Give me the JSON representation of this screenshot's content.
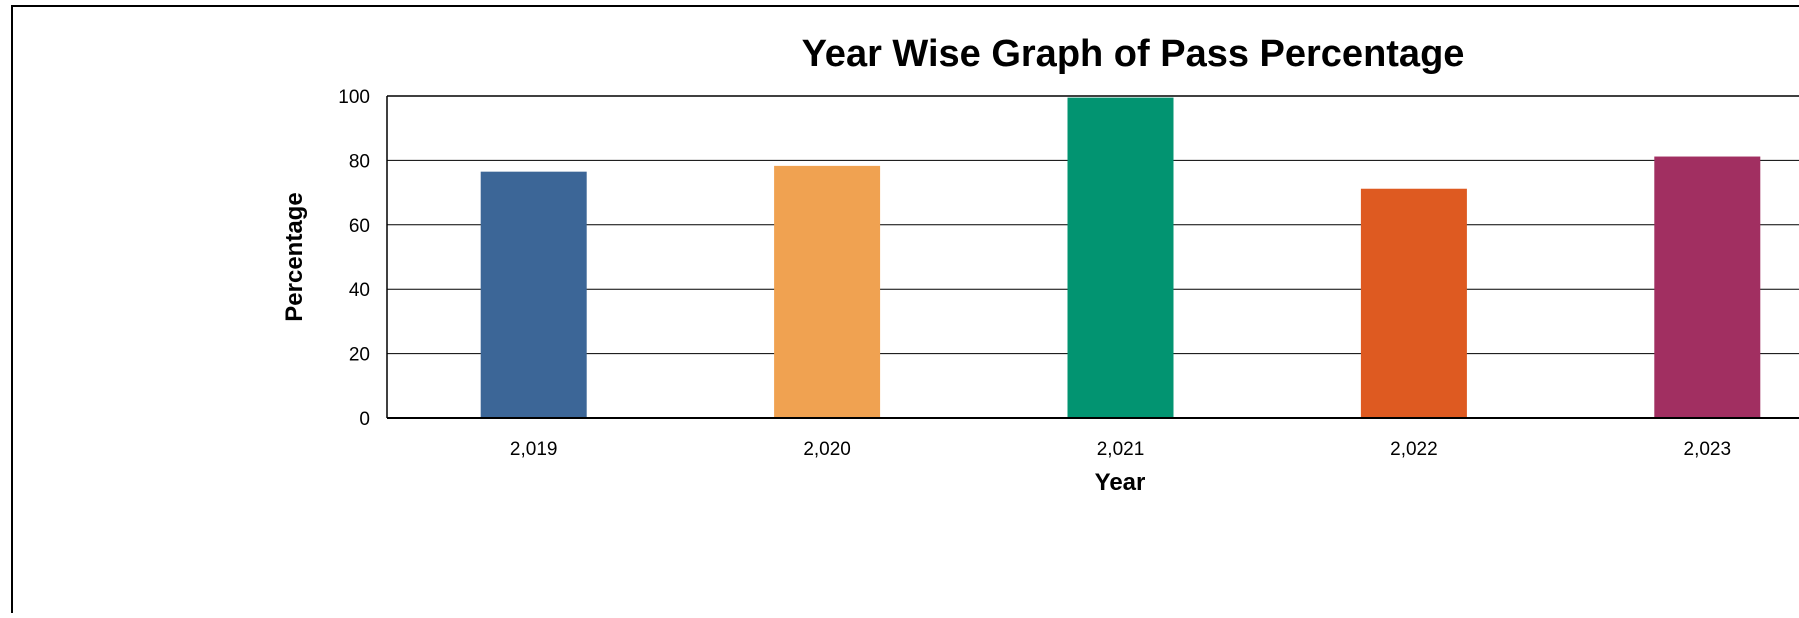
{
  "chart_data": {
    "type": "bar",
    "title": "Year Wise Graph of Pass Percentage",
    "xlabel": "Year",
    "ylabel": "Percentage",
    "categories": [
      "2,019",
      "2,020",
      "2,021",
      "2,022",
      "2,023"
    ],
    "values": [
      76.5,
      78.3,
      99.5,
      71.2,
      81.2
    ],
    "ylim": [
      0,
      100
    ],
    "yticks": [
      "0",
      "20",
      "40",
      "60",
      "80",
      "100"
    ],
    "grid": true,
    "legend": "none",
    "colors": [
      "#3c6697",
      "#f0a251",
      "#029471",
      "#de5a21",
      "#a12f61"
    ]
  }
}
